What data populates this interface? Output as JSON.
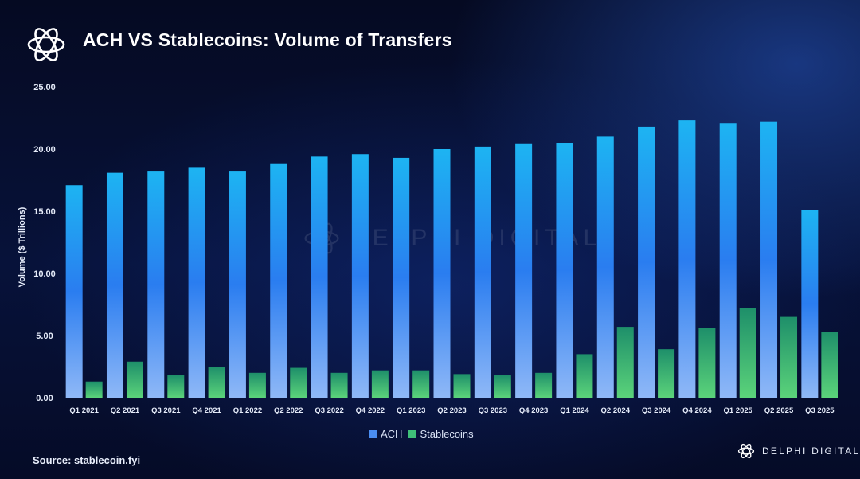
{
  "header": {
    "title": "ACH VS Stablecoins: Volume of Transfers"
  },
  "footer": {
    "source": "Source: stablecoin.fyi",
    "brand": "DELPHI DIGITAL"
  },
  "watermark": {
    "text": "DELPHI DIGITAL"
  },
  "colors": {
    "background": "#050b27",
    "ach_top": "#1db4f2",
    "ach_mid": "#2a7df0",
    "ach_bottom": "#8fb8f7",
    "stablecoins_top": "#1e8f6a",
    "stablecoins_bottom": "#5bd37a",
    "ach_legend": "#4a8df2",
    "stablecoins_legend": "#3fbf78"
  },
  "chart_data": {
    "type": "bar",
    "title": "ACH VS Stablecoins: Volume of Transfers",
    "ylabel": "Volume ($ Trillions)",
    "xlabel": "",
    "ylim": [
      0,
      25
    ],
    "yticks": [
      "0.00",
      "5.00",
      "10.00",
      "15.00",
      "20.00",
      "25.00"
    ],
    "grid": false,
    "legend_position": "bottom-center",
    "categories": [
      "Q1 2021",
      "Q2 2021",
      "Q3 2021",
      "Q4 2021",
      "Q1 2022",
      "Q2 2022",
      "Q3 2022",
      "Q4 2022",
      "Q1 2023",
      "Q2 2023",
      "Q3 2023",
      "Q4 2023",
      "Q1 2024",
      "Q2 2024",
      "Q3 2024",
      "Q4 2024",
      "Q1 2025",
      "Q2 2025",
      "Q3 2025"
    ],
    "series": [
      {
        "name": "ACH",
        "values": [
          17.1,
          18.1,
          18.2,
          18.5,
          18.2,
          18.8,
          19.4,
          19.6,
          19.3,
          20.0,
          20.2,
          20.4,
          20.5,
          21.0,
          21.8,
          22.3,
          22.1,
          22.2,
          15.1
        ]
      },
      {
        "name": "Stablecoins",
        "values": [
          1.3,
          2.9,
          1.8,
          2.5,
          2.0,
          2.4,
          2.0,
          2.2,
          2.2,
          1.9,
          1.8,
          2.0,
          3.5,
          5.7,
          3.9,
          5.6,
          7.2,
          6.5,
          5.3
        ]
      }
    ]
  }
}
